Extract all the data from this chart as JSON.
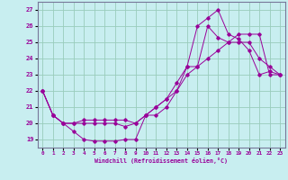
{
  "xlabel": "Windchill (Refroidissement éolien,°C)",
  "bg_color": "#c8eef0",
  "line_color": "#990099",
  "grid_color": "#99ccbb",
  "ylim": [
    18.5,
    27.5
  ],
  "xlim": [
    -0.5,
    23.5
  ],
  "yticks": [
    19,
    20,
    21,
    22,
    23,
    24,
    25,
    26,
    27
  ],
  "xticks": [
    0,
    1,
    2,
    3,
    4,
    5,
    6,
    7,
    8,
    9,
    10,
    11,
    12,
    13,
    14,
    15,
    16,
    17,
    18,
    19,
    20,
    21,
    22,
    23
  ],
  "hours": [
    0,
    1,
    2,
    3,
    4,
    5,
    6,
    7,
    8,
    9,
    10,
    11,
    12,
    13,
    14,
    15,
    16,
    17,
    18,
    19,
    20,
    21,
    22,
    23
  ],
  "line1": [
    22.0,
    20.5,
    20.0,
    19.5,
    19.0,
    18.9,
    18.9,
    18.9,
    19.0,
    19.0,
    20.5,
    21.0,
    21.5,
    22.0,
    23.5,
    26.0,
    26.5,
    27.0,
    25.5,
    25.2,
    24.5,
    23.0,
    23.2,
    23.0
  ],
  "line2": [
    22.0,
    20.5,
    20.0,
    20.0,
    20.2,
    20.2,
    20.2,
    20.2,
    20.2,
    20.0,
    20.5,
    21.0,
    21.5,
    22.5,
    23.5,
    23.5,
    24.0,
    24.5,
    25.0,
    25.5,
    25.5,
    25.5,
    23.0,
    23.0
  ],
  "line3": [
    22.0,
    20.5,
    20.0,
    20.0,
    20.0,
    20.0,
    20.0,
    20.0,
    19.8,
    20.0,
    20.5,
    20.5,
    21.0,
    22.0,
    23.0,
    23.5,
    26.0,
    25.3,
    25.0,
    25.0,
    25.0,
    24.0,
    23.5,
    23.0
  ]
}
